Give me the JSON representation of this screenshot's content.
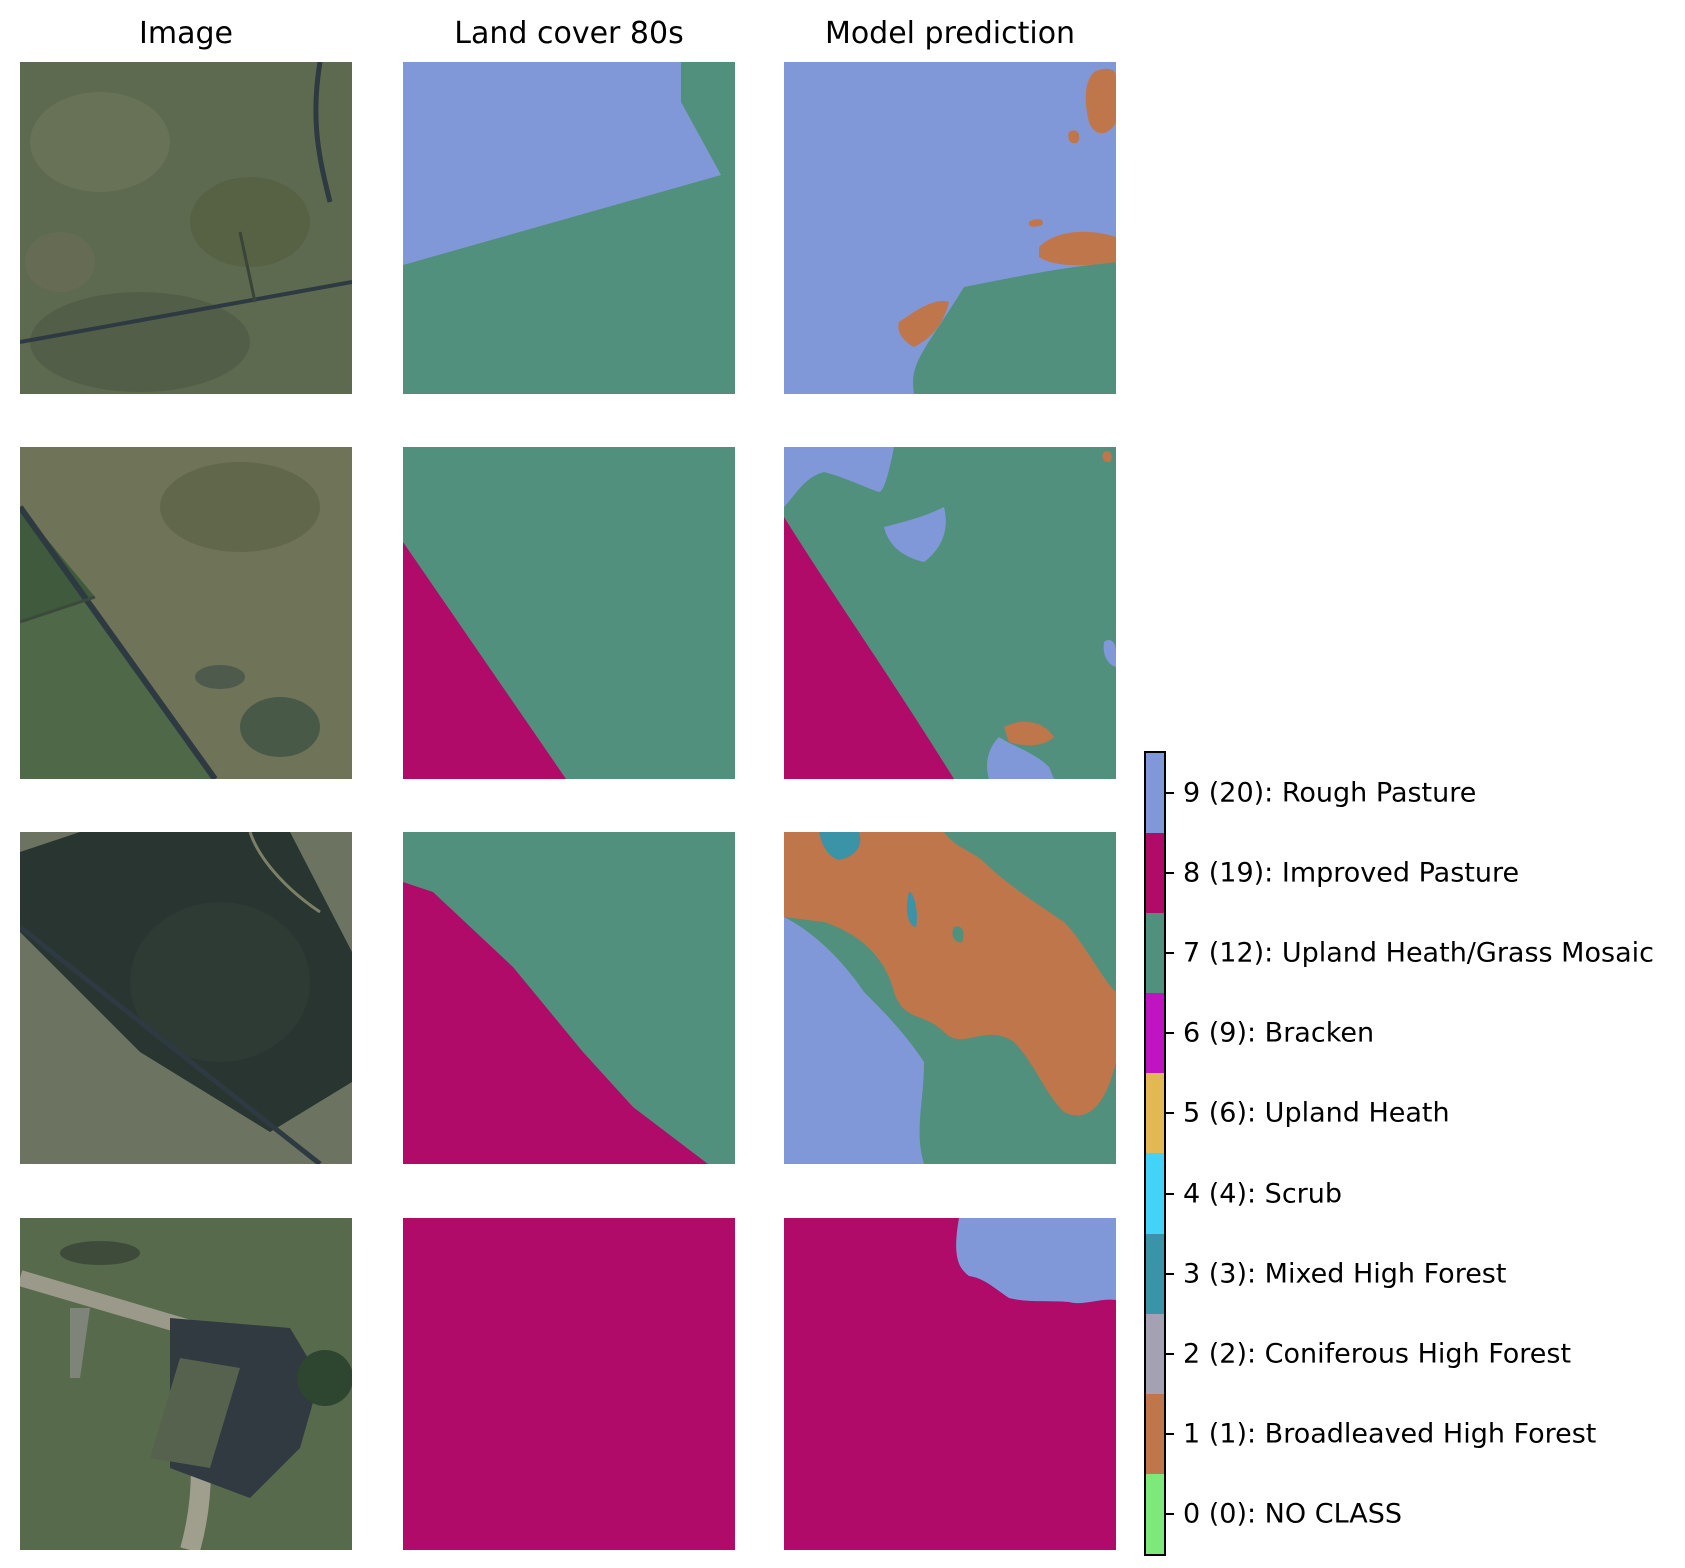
{
  "column_titles": [
    "Image",
    "Land cover 80s",
    "Model prediction"
  ],
  "legend": {
    "classes": [
      {
        "label": "9 (20): Rough Pasture",
        "color": "#8198d8"
      },
      {
        "label": "8 (19): Improved Pasture",
        "color": "#b10b6a"
      },
      {
        "label": "7 (12): Upland Heath/Grass Mosaic",
        "color": "#52907e"
      },
      {
        "label": "6 (9): Bracken",
        "color": "#c014c2"
      },
      {
        "label": "5 (6): Upland Heath",
        "color": "#e2b852"
      },
      {
        "label": "4 (4): Scrub",
        "color": "#42d3f6"
      },
      {
        "label": "3 (3): Mixed High Forest",
        "color": "#3a93a7"
      },
      {
        "label": "2 (2): Coniferous High Forest",
        "color": "#a3a1b2"
      },
      {
        "label": "1 (1): Broadleaved High Forest",
        "color": "#bf764b"
      },
      {
        "label": "0 (0): NO CLASS",
        "color": "#7fe87a"
      }
    ]
  }
}
